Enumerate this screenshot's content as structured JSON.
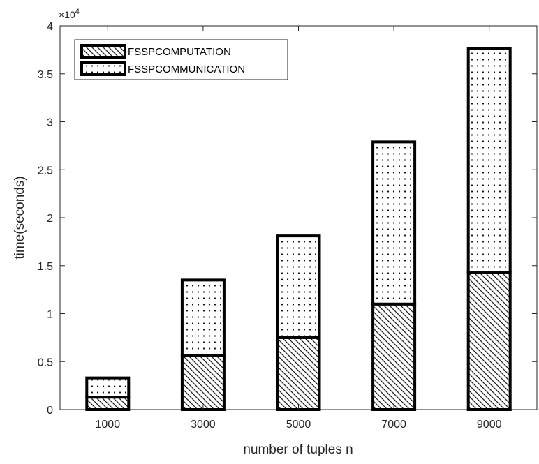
{
  "chart_data": {
    "type": "bar",
    "stacked": true,
    "categories": [
      "1000",
      "3000",
      "5000",
      "7000",
      "9000"
    ],
    "series": [
      {
        "name": "FSSPCOMPUTATION",
        "values": [
          1300,
          5600,
          7500,
          11000,
          14300
        ]
      },
      {
        "name": "FSSPCOMMUNICATION",
        "values": [
          2000,
          7900,
          10600,
          16900,
          23300
        ]
      }
    ],
    "xlabel": "number of tuples n",
    "ylabel": "time(seconds)",
    "ylim": [
      0,
      40000
    ],
    "y_ticks": [
      0,
      5000,
      10000,
      15000,
      20000,
      25000,
      30000,
      35000,
      40000
    ],
    "y_tick_labels": [
      "0",
      "0.5",
      "1",
      "1.5",
      "2",
      "2.5",
      "3",
      "3.5",
      "4"
    ],
    "y_multiplier": {
      "base": "×10",
      "exponent": "4"
    },
    "legend_position": "top-left",
    "grid": false
  }
}
